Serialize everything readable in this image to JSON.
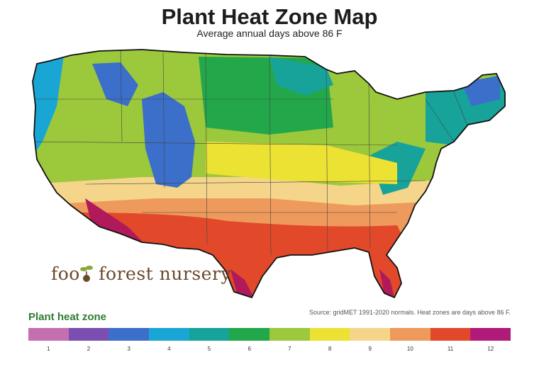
{
  "header": {
    "title": "Plant Heat Zone Map",
    "subtitle": "Average annual days above 86 F"
  },
  "logo": {
    "text_before": "foo",
    "text_after": " forest nursery"
  },
  "source": "Source: gridMET 1991-2020 normals. Heat zones are days above 86 F.",
  "legend": {
    "title": "Plant heat zone",
    "zones": [
      {
        "label": "1",
        "color": "#c46fb0"
      },
      {
        "label": "2",
        "color": "#7b4fb0"
      },
      {
        "label": "3",
        "color": "#3b6fc9"
      },
      {
        "label": "4",
        "color": "#1aa6d4"
      },
      {
        "label": "5",
        "color": "#17a39a"
      },
      {
        "label": "6",
        "color": "#22a84a"
      },
      {
        "label": "7",
        "color": "#9cc83c"
      },
      {
        "label": "8",
        "color": "#ece234"
      },
      {
        "label": "9",
        "color": "#f4d58a"
      },
      {
        "label": "10",
        "color": "#ee9a5c"
      },
      {
        "label": "11",
        "color": "#e2492a"
      },
      {
        "label": "12",
        "color": "#b01a78"
      }
    ]
  }
}
